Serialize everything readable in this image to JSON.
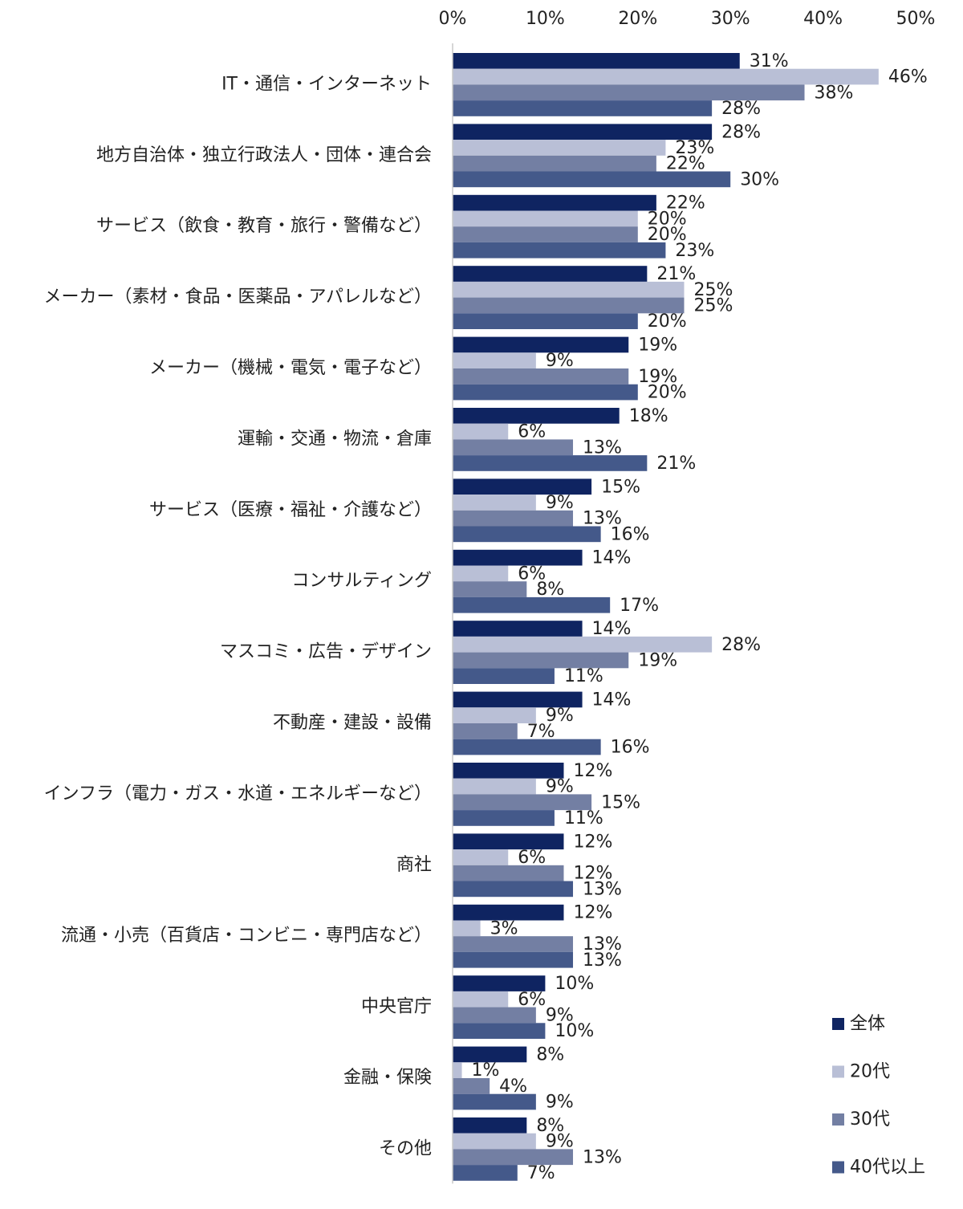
{
  "chart_data": {
    "type": "bar",
    "orientation": "horizontal",
    "title": "",
    "xlabel": "",
    "ylabel": "",
    "xlim": [
      0,
      50
    ],
    "x_ticks": [
      "0%",
      "10%",
      "20%",
      "30%",
      "40%",
      "50%"
    ],
    "grid": false,
    "legend_position": "bottom-right",
    "value_suffix": "%",
    "categories": [
      "IT・通信・インターネット",
      "地方自治体・独立行政法人・団体・連合会",
      "サービス（飲食・教育・旅行・警備など）",
      "メーカー（素材・食品・医薬品・アパレルなど）",
      "メーカー（機械・電気・電子など）",
      "運輸・交通・物流・倉庫",
      "サービス（医療・福祉・介護など）",
      "コンサルティング",
      "マスコミ・広告・デザイン",
      "不動産・建設・設備",
      "インフラ（電力・ガス・水道・エネルギーなど）",
      "商社",
      "流通・小売（百貨店・コンビニ・専門店など）",
      "中央官庁",
      "金融・保険",
      "その他"
    ],
    "series": [
      {
        "name": "全体",
        "color": "#0f2461",
        "values": [
          31,
          28,
          22,
          21,
          19,
          18,
          15,
          14,
          14,
          14,
          12,
          12,
          12,
          10,
          8,
          8
        ]
      },
      {
        "name": "20代",
        "color": "#b9bfd6",
        "values": [
          46,
          23,
          20,
          25,
          9,
          6,
          9,
          6,
          28,
          9,
          9,
          6,
          3,
          6,
          1,
          9
        ]
      },
      {
        "name": "30代",
        "color": "#737fa3",
        "values": [
          38,
          22,
          20,
          25,
          19,
          13,
          13,
          8,
          19,
          7,
          15,
          12,
          13,
          9,
          4,
          13
        ]
      },
      {
        "name": "40代以上",
        "color": "#44598a",
        "values": [
          28,
          30,
          23,
          20,
          20,
          21,
          16,
          17,
          11,
          16,
          11,
          13,
          13,
          10,
          9,
          7
        ]
      }
    ]
  }
}
